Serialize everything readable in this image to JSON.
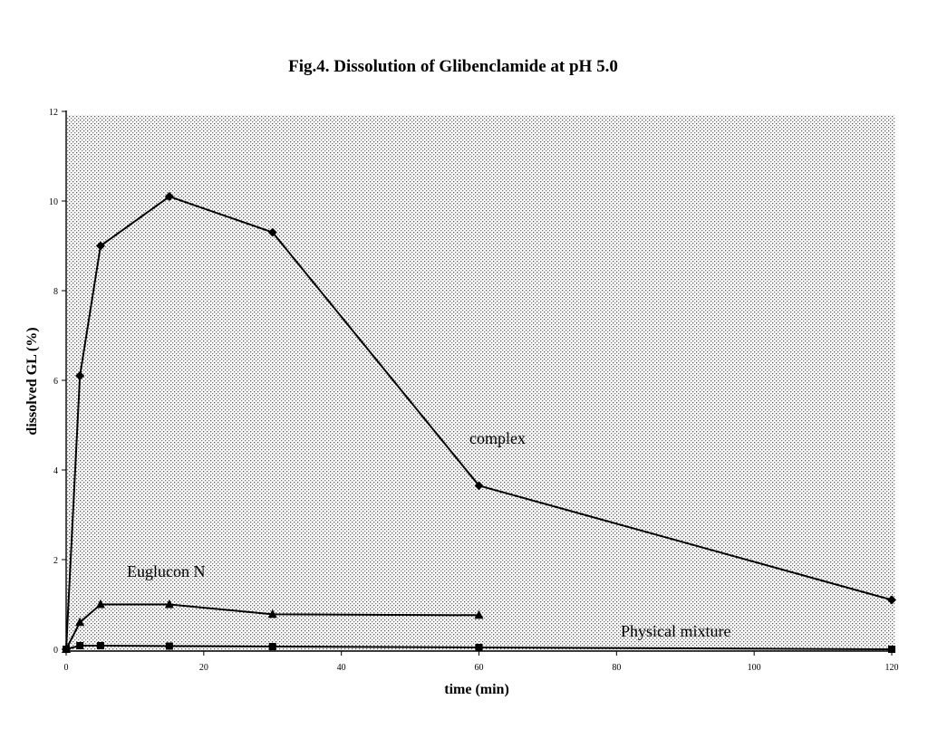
{
  "chart_data": {
    "type": "line",
    "title": "Fig.4. Dissolution of Glibenclamide  at pH 5.0",
    "xlabel": "time (min)",
    "ylabel": "dissolved GL (%)",
    "xlim": [
      0,
      120
    ],
    "ylim": [
      0,
      12
    ],
    "xticks": [
      "0",
      "20",
      "40",
      "60",
      "80",
      "100",
      "120"
    ],
    "yticks": [
      "0",
      "2",
      "4",
      "6",
      "8",
      "10",
      "12"
    ],
    "grid": false,
    "background": "dotted",
    "series": [
      {
        "name": "complex",
        "marker": "diamond",
        "color": "#000000",
        "x": [
          0,
          2,
          5,
          15,
          30,
          60,
          120
        ],
        "y": [
          0,
          6.1,
          9.0,
          10.1,
          9.3,
          3.65,
          1.1
        ]
      },
      {
        "name": "Euglucon N",
        "marker": "triangle",
        "color": "#000000",
        "x": [
          0,
          2,
          5,
          15,
          30,
          60
        ],
        "y": [
          0,
          0.6,
          1.0,
          1.0,
          0.78,
          0.76
        ]
      },
      {
        "name": "Physical mixture",
        "marker": "square",
        "color": "#000000",
        "x": [
          0,
          2,
          5,
          15,
          30,
          60,
          120
        ],
        "y": [
          0,
          0.08,
          0.08,
          0.07,
          0.06,
          0.04,
          0.0
        ]
      }
    ]
  }
}
